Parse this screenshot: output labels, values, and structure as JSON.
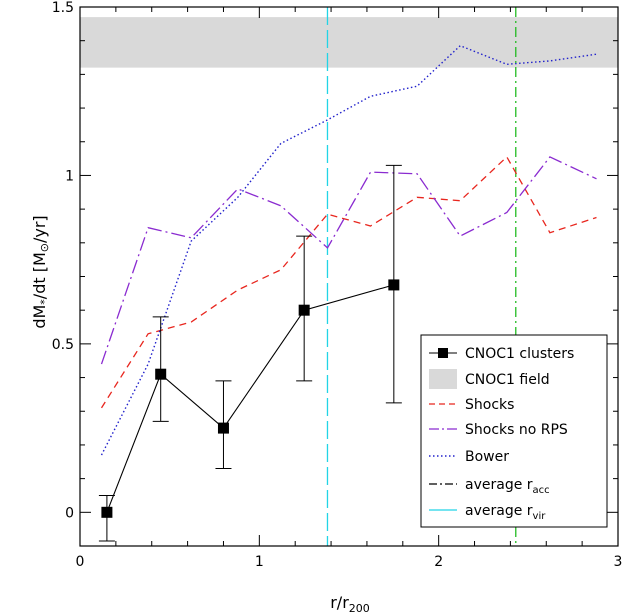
{
  "chart_data": {
    "type": "line",
    "xlabel": "r/r",
    "xlabel_sub": "200",
    "ylabel_parts": {
      "a": "dM",
      "star": "*",
      "b": "/dt  [M",
      "sun": "⊙",
      "c": "/yr]"
    },
    "xlim": [
      0,
      3
    ],
    "ylim": [
      -0.1,
      1.5
    ],
    "x_ticks": [
      {
        "value": 0,
        "label": "0"
      },
      {
        "value": 1,
        "label": "1"
      },
      {
        "value": 2,
        "label": "2"
      },
      {
        "value": 3,
        "label": "3"
      }
    ],
    "y_ticks": [
      {
        "value": 0,
        "label": "0"
      },
      {
        "value": 0.5,
        "label": "0.5"
      },
      {
        "value": 1,
        "label": "1"
      },
      {
        "value": 1.5,
        "label": "1.5"
      }
    ],
    "field_band": {
      "name": "CNOC1 field",
      "ymin": 1.32,
      "ymax": 1.47,
      "color": "#d9d9d9"
    },
    "vlines": [
      {
        "name": "average r",
        "sub": "vir",
        "x": 1.38,
        "color": "#22d4e6"
      },
      {
        "name": "average r",
        "sub": "acc",
        "x": 2.43,
        "color": "#22bb22"
      }
    ],
    "series": [
      {
        "name": "CNOC1 clusters",
        "color": "#000000",
        "x": [
          0.15,
          0.45,
          0.8,
          1.25,
          1.75
        ],
        "y": [
          0.0,
          0.41,
          0.25,
          0.6,
          0.675
        ],
        "err_low": [
          -0.085,
          0.27,
          0.13,
          0.39,
          0.325
        ],
        "err_high": [
          0.05,
          0.58,
          0.39,
          0.82,
          1.03
        ]
      },
      {
        "name": "Shocks",
        "color": "#e8261e",
        "x": [
          0.12,
          0.38,
          0.62,
          0.88,
          1.12,
          1.38,
          1.62,
          1.88,
          2.12,
          2.38,
          2.62,
          2.88
        ],
        "y": [
          0.31,
          0.53,
          0.565,
          0.66,
          0.72,
          0.885,
          0.85,
          0.935,
          0.925,
          1.055,
          0.83,
          0.875
        ]
      },
      {
        "name": "Shocks no RPS",
        "color": "#8a2bd0",
        "x": [
          0.12,
          0.38,
          0.62,
          0.88,
          1.12,
          1.38,
          1.62,
          1.88,
          2.12,
          2.38,
          2.62,
          2.88
        ],
        "y": [
          0.44,
          0.845,
          0.815,
          0.96,
          0.91,
          0.785,
          1.01,
          1.005,
          0.82,
          0.89,
          1.055,
          0.99
        ]
      },
      {
        "name": "Bower",
        "color": "#2222cc",
        "x": [
          0.12,
          0.38,
          0.62,
          0.88,
          1.12,
          1.38,
          1.62,
          1.88,
          2.12,
          2.38,
          2.62,
          2.88
        ],
        "y": [
          0.17,
          0.44,
          0.805,
          0.935,
          1.095,
          1.165,
          1.235,
          1.265,
          1.385,
          1.33,
          1.34,
          1.36
        ]
      }
    ],
    "legend": {
      "position": "bottom-right",
      "entries": [
        {
          "label": "CNOC1 clusters",
          "sub": "",
          "style": "marker"
        },
        {
          "label": "CNOC1 field",
          "sub": "",
          "style": "band"
        },
        {
          "label": "Shocks",
          "sub": "",
          "style": "dashed-red"
        },
        {
          "label": "Shocks no RPS",
          "sub": "",
          "style": "dashdot-purple"
        },
        {
          "label": "Bower",
          "sub": "",
          "style": "dotted-blue"
        },
        {
          "label": "average r",
          "sub": "acc",
          "style": "dashdot-black"
        },
        {
          "label": "average r",
          "sub": "vir",
          "style": "solid-cyan"
        }
      ]
    }
  }
}
